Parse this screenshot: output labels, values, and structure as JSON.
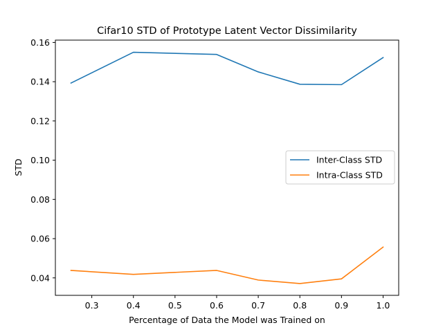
{
  "chart_data": {
    "type": "line",
    "title": "Cifar10 STD of Prototype Latent Vector Dissimilarity",
    "xlabel": "Percentage of Data the Model was Trained on",
    "ylabel": "STD",
    "x": [
      0.25,
      0.4,
      0.6,
      0.7,
      0.8,
      0.9,
      1.0
    ],
    "xlim": [
      0.2125,
      1.0375
    ],
    "ylim": [
      0.0311,
      0.1612
    ],
    "xticks": [
      0.3,
      0.4,
      0.5,
      0.6,
      0.7,
      0.8,
      0.9,
      1.0
    ],
    "xtick_labels": [
      "0.3",
      "0.4",
      "0.5",
      "0.6",
      "0.7",
      "0.8",
      "0.9",
      "1.0"
    ],
    "yticks": [
      0.04,
      0.06,
      0.08,
      0.1,
      0.12,
      0.14,
      0.16
    ],
    "ytick_labels": [
      "0.04",
      "0.06",
      "0.08",
      "0.10",
      "0.12",
      "0.14",
      "0.16"
    ],
    "grid": false,
    "legend_position": "center-right",
    "series": [
      {
        "name": "Inter-Class STD",
        "color": "#1f77b4",
        "values": [
          0.1393,
          0.155,
          0.1539,
          0.145,
          0.1387,
          0.1385,
          0.1523
        ]
      },
      {
        "name": "Intra-Class STD",
        "color": "#ff7f0e",
        "values": [
          0.0438,
          0.0418,
          0.0438,
          0.0389,
          0.0371,
          0.0395,
          0.0557
        ]
      }
    ]
  }
}
